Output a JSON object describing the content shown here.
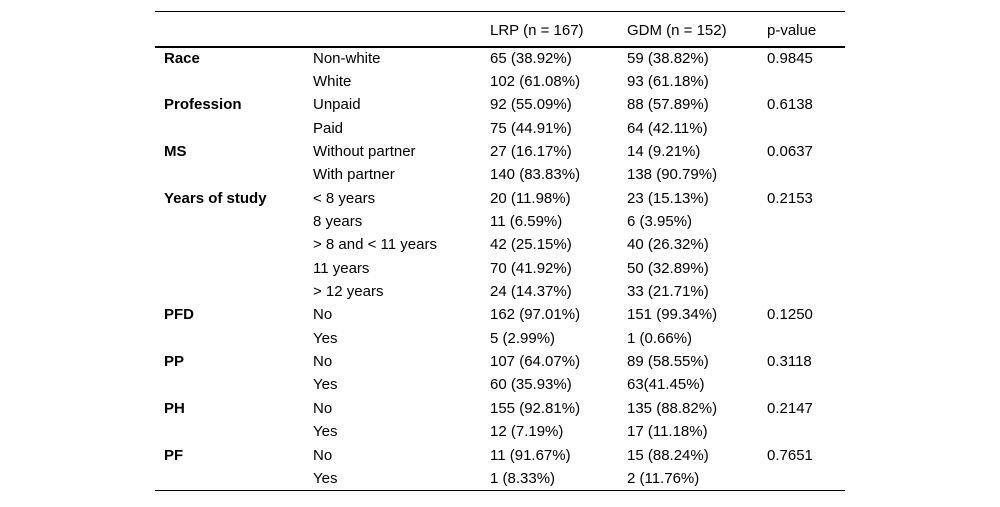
{
  "table": {
    "headers": [
      "",
      "",
      "LRP (n = 167)",
      "GDM (n = 152)",
      "p-value"
    ],
    "rows": [
      {
        "category": "Race",
        "label": "Non-white",
        "lrp": "65 (38.92%)",
        "gdm": "59 (38.82%)",
        "p": "0.9845"
      },
      {
        "category": "",
        "label": "White",
        "lrp": "102 (61.08%)",
        "gdm": "93 (61.18%)",
        "p": ""
      },
      {
        "category": "Profession",
        "label": "Unpaid",
        "lrp": "92 (55.09%)",
        "gdm": "88 (57.89%)",
        "p": "0.6138"
      },
      {
        "category": "",
        "label": "Paid",
        "lrp": "75 (44.91%)",
        "gdm": "64 (42.11%)",
        "p": ""
      },
      {
        "category": "MS",
        "label": "Without partner",
        "lrp": "27 (16.17%)",
        "gdm": "14 (9.21%)",
        "p": "0.0637"
      },
      {
        "category": "",
        "label": "With partner",
        "lrp": "140 (83.83%)",
        "gdm": "138 (90.79%)",
        "p": ""
      },
      {
        "category": "Years of study",
        "label": "< 8 years",
        "lrp": "20 (11.98%)",
        "gdm": "23 (15.13%)",
        "p": "0.2153"
      },
      {
        "category": "",
        "label": "8 years",
        "lrp": "11 (6.59%)",
        "gdm": "6 (3.95%)",
        "p": ""
      },
      {
        "category": "",
        "label": "> 8 and < 11 years",
        "lrp": "42 (25.15%)",
        "gdm": "40 (26.32%)",
        "p": ""
      },
      {
        "category": "",
        "label": "11 years",
        "lrp": "70 (41.92%)",
        "gdm": "50 (32.89%)",
        "p": ""
      },
      {
        "category": "",
        "label": "> 12 years",
        "lrp": "24 (14.37%)",
        "gdm": "33 (21.71%)",
        "p": ""
      },
      {
        "category": "PFD",
        "label": "No",
        "lrp": "162 (97.01%)",
        "gdm": "151 (99.34%)",
        "p": "0.1250"
      },
      {
        "category": "",
        "label": "Yes",
        "lrp": "5 (2.99%)",
        "gdm": "1 (0.66%)",
        "p": ""
      },
      {
        "category": "PP",
        "label": "No",
        "lrp": "107 (64.07%)",
        "gdm": "89 (58.55%)",
        "p": "0.3118"
      },
      {
        "category": "",
        "label": "Yes",
        "lrp": "60 (35.93%)",
        "gdm": "63(41.45%)",
        "p": ""
      },
      {
        "category": "PH",
        "label": "No",
        "lrp": "155 (92.81%)",
        "gdm": "135 (88.82%)",
        "p": "0.2147"
      },
      {
        "category": "",
        "label": "Yes",
        "lrp": "12 (7.19%)",
        "gdm": "17 (11.18%)",
        "p": ""
      },
      {
        "category": "PF",
        "label": "No",
        "lrp": "11 (91.67%)",
        "gdm": "15 (88.24%)",
        "p": "0.7651"
      },
      {
        "category": "",
        "label": "Yes",
        "lrp": "1 (8.33%)",
        "gdm": "2 (11.76%)",
        "p": ""
      }
    ]
  }
}
